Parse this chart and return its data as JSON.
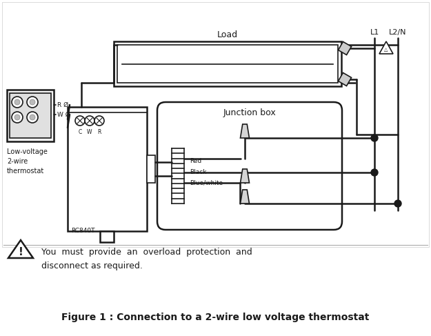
{
  "bg_color": "#ffffff",
  "line_color": "#1a1a1a",
  "title": "Figure 1 : Connection to a 2-wire low voltage thermostat",
  "warning_text_line1": "You  must  provide  an  overload  protection  and",
  "warning_text_line2": "disconnect as required.",
  "load_label": "Load",
  "junction_label": "Junction box",
  "thermostat_label": "Low-voltage\n2-wire\nthermostat",
  "rc_label": "RC840T",
  "L1_label": "L1",
  "L2N_label": "L2/N",
  "wire_labels": [
    "Red",
    "Black",
    "Blue/white"
  ],
  "terminal_labels": [
    "R Ø",
    "W Ø"
  ],
  "cwR": "C  W  R"
}
